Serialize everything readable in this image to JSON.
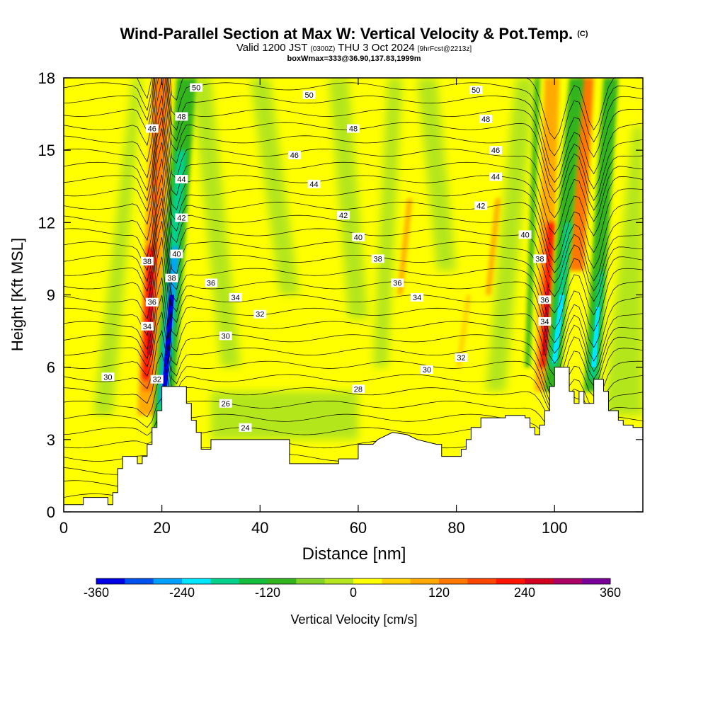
{
  "title": {
    "main": "Wind-Parallel Section at Max W: Vertical Velocity & Pot.Temp.",
    "copyright": "(C)",
    "valid_prefix": "Valid 1200 JST",
    "valid_z": "(0300Z)",
    "valid_date": "THU 3 Oct 2024",
    "forecast": "[9hrFcst@2213z]",
    "boxwmax": "boxWmax=333@36.90,137.83,1999m"
  },
  "chart_data": {
    "type": "heatmap",
    "xlabel": "Distance [nm]",
    "ylabel": "Height [Kft MSL]",
    "xlim": [
      0,
      118
    ],
    "ylim": [
      0,
      18
    ],
    "x_ticks": [
      0,
      20,
      40,
      60,
      80,
      100
    ],
    "y_ticks": [
      0,
      3,
      6,
      9,
      12,
      15,
      18
    ],
    "colorbar": {
      "label": "Vertical Velocity [cm/s]",
      "range": [
        -360,
        360
      ],
      "tick_values": [
        -360,
        -240,
        -120,
        0,
        120,
        240,
        360
      ],
      "colors": [
        "#0000e6",
        "#0050f0",
        "#00a0ff",
        "#00e6ff",
        "#00d28c",
        "#14be3c",
        "#32b41e",
        "#82d228",
        "#b4e61e",
        "#ffff00",
        "#ffd200",
        "#ffaa00",
        "#ff7800",
        "#ff4600",
        "#ff1400",
        "#d2001e",
        "#aa0064",
        "#780096"
      ]
    },
    "terrain_kft": [
      [
        0,
        0.3
      ],
      [
        4,
        0.3
      ],
      [
        4,
        0.6
      ],
      [
        9,
        0.6
      ],
      [
        9,
        0.3
      ],
      [
        10,
        0.3
      ],
      [
        10,
        0.8
      ],
      [
        11,
        0.8
      ],
      [
        11,
        1.8
      ],
      [
        12,
        1.8
      ],
      [
        12,
        2.3
      ],
      [
        15,
        2.3
      ],
      [
        15,
        2
      ],
      [
        16,
        2
      ],
      [
        16,
        2.3
      ],
      [
        17,
        2.3
      ],
      [
        17,
        2.8
      ],
      [
        18,
        2.8
      ],
      [
        18,
        3.5
      ],
      [
        19,
        3.5
      ],
      [
        19,
        4.2
      ],
      [
        20,
        4.2
      ],
      [
        20,
        5.2
      ],
      [
        25,
        5.2
      ],
      [
        25,
        4.5
      ],
      [
        26,
        4.5
      ],
      [
        26,
        3.8
      ],
      [
        27,
        3.8
      ],
      [
        27,
        3.3
      ],
      [
        28,
        3.3
      ],
      [
        28,
        2.6
      ],
      [
        30,
        2.6
      ],
      [
        30,
        3
      ],
      [
        46,
        3
      ],
      [
        46,
        2
      ],
      [
        56,
        2
      ],
      [
        56,
        2.2
      ],
      [
        60,
        2.2
      ],
      [
        60,
        2.8
      ],
      [
        63,
        2.8
      ],
      [
        64,
        3
      ],
      [
        67,
        3.3
      ],
      [
        70,
        3.2
      ],
      [
        72,
        3
      ],
      [
        76,
        2.8
      ],
      [
        77,
        2.8
      ],
      [
        77,
        2.3
      ],
      [
        81,
        2.3
      ],
      [
        81,
        2.6
      ],
      [
        82,
        2.6
      ],
      [
        82,
        3
      ],
      [
        83,
        3
      ],
      [
        83,
        3.5
      ],
      [
        85,
        3.5
      ],
      [
        85,
        3.9
      ],
      [
        90,
        3.9
      ],
      [
        90,
        4
      ],
      [
        94,
        4
      ],
      [
        94,
        3.9
      ],
      [
        95,
        3.9
      ],
      [
        95,
        3.5
      ],
      [
        96,
        3.5
      ],
      [
        96,
        3.2
      ],
      [
        97,
        3.2
      ],
      [
        97,
        3.6
      ],
      [
        98,
        3.6
      ],
      [
        98,
        4.2
      ],
      [
        99,
        4.2
      ],
      [
        99,
        5.2
      ],
      [
        100,
        5.2
      ],
      [
        100,
        6
      ],
      [
        103,
        6
      ],
      [
        103,
        5
      ],
      [
        104,
        5
      ],
      [
        104,
        4.5
      ],
      [
        105,
        4.5
      ],
      [
        105,
        5
      ],
      [
        106,
        5
      ],
      [
        106,
        4.5
      ],
      [
        108,
        4.5
      ],
      [
        108,
        5.5
      ],
      [
        110,
        5.5
      ],
      [
        110,
        5
      ],
      [
        111,
        5
      ],
      [
        111,
        4.2
      ],
      [
        113,
        4.2
      ],
      [
        113,
        3.8
      ],
      [
        114,
        3.8
      ],
      [
        114,
        3.6
      ],
      [
        116,
        3.6
      ],
      [
        116,
        3.5
      ],
      [
        118,
        3.5
      ]
    ],
    "theta_contour_labels": [
      {
        "text": "50",
        "x": 27,
        "y": 17.6
      },
      {
        "text": "50",
        "x": 50,
        "y": 17.3
      },
      {
        "text": "50",
        "x": 84,
        "y": 17.5
      },
      {
        "text": "48",
        "x": 24,
        "y": 16.4
      },
      {
        "text": "48",
        "x": 59,
        "y": 15.9
      },
      {
        "text": "48",
        "x": 86,
        "y": 16.3
      },
      {
        "text": "46",
        "x": 18,
        "y": 15.9
      },
      {
        "text": "46",
        "x": 47,
        "y": 14.8
      },
      {
        "text": "46",
        "x": 88,
        "y": 15
      },
      {
        "text": "44",
        "x": 24,
        "y": 13.8
      },
      {
        "text": "44",
        "x": 51,
        "y": 13.6
      },
      {
        "text": "44",
        "x": 88,
        "y": 13.9
      },
      {
        "text": "42",
        "x": 24,
        "y": 12.2
      },
      {
        "text": "42",
        "x": 57,
        "y": 12.3
      },
      {
        "text": "42",
        "x": 85,
        "y": 12.7
      },
      {
        "text": "40",
        "x": 23,
        "y": 10.7
      },
      {
        "text": "40",
        "x": 60,
        "y": 11.4
      },
      {
        "text": "40",
        "x": 94,
        "y": 11.5
      },
      {
        "text": "38",
        "x": 17,
        "y": 10.4
      },
      {
        "text": "38",
        "x": 22,
        "y": 9.7
      },
      {
        "text": "38",
        "x": 64,
        "y": 10.5
      },
      {
        "text": "38",
        "x": 97,
        "y": 10.5
      },
      {
        "text": "36",
        "x": 18,
        "y": 8.7
      },
      {
        "text": "36",
        "x": 30,
        "y": 9.5
      },
      {
        "text": "36",
        "x": 68,
        "y": 9.5
      },
      {
        "text": "36",
        "x": 98,
        "y": 8.8
      },
      {
        "text": "34",
        "x": 17,
        "y": 7.7
      },
      {
        "text": "34",
        "x": 35,
        "y": 8.9
      },
      {
        "text": "34",
        "x": 72,
        "y": 8.9
      },
      {
        "text": "34",
        "x": 98,
        "y": 7.9
      },
      {
        "text": "32",
        "x": 40,
        "y": 8.2
      },
      {
        "text": "32",
        "x": 81,
        "y": 6.4
      },
      {
        "text": "32",
        "x": 19,
        "y": 5.5
      },
      {
        "text": "30",
        "x": 9,
        "y": 5.6
      },
      {
        "text": "30",
        "x": 33,
        "y": 7.3
      },
      {
        "text": "30",
        "x": 74,
        "y": 5.9
      },
      {
        "text": "28",
        "x": 60,
        "y": 5.1
      },
      {
        "text": "26",
        "x": 33,
        "y": 4.5
      },
      {
        "text": "24",
        "x": 37,
        "y": 3.5
      }
    ]
  }
}
